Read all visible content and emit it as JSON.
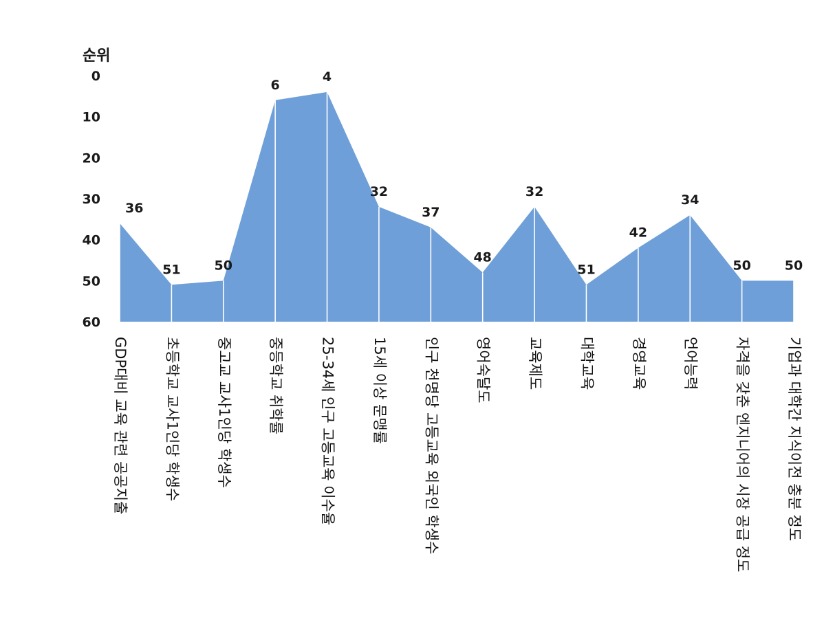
{
  "chart_data": {
    "type": "area",
    "ylabel": "순위",
    "ylim": [
      0,
      60
    ],
    "y_inverted": true,
    "yticks": [
      "0",
      "10",
      "20",
      "30",
      "40",
      "50",
      "60"
    ],
    "colors": {
      "fill": "#6e9fd8",
      "divider": "#ffffff"
    },
    "categories": [
      "GDP대비 교육 관련 공공지출",
      "초등학교 교사1인당 학생수",
      "중고교 교사1인당 학생수",
      "중등학교 취학률",
      "25-34세 인구 고등교육 이수율",
      "15세 이상 문맹률",
      "인구 천명당 고등교육 외국인 학생수",
      "영어숙달도",
      "교육제도",
      "대학교육",
      "경영교육",
      "언어능력",
      "자격을 갖춘 엔지니어의 시장 공급 정도",
      "기업과 대학간 지식이전 충분 정도"
    ],
    "values": [
      36,
      51,
      50,
      6,
      4,
      32,
      37,
      48,
      32,
      51,
      42,
      34,
      50,
      50
    ],
    "data_labels": [
      "36",
      "51",
      "50",
      "6",
      "4",
      "32",
      "37",
      "48",
      "32",
      "51",
      "42",
      "34",
      "50",
      "50"
    ],
    "grid": false,
    "legend": "none"
  }
}
